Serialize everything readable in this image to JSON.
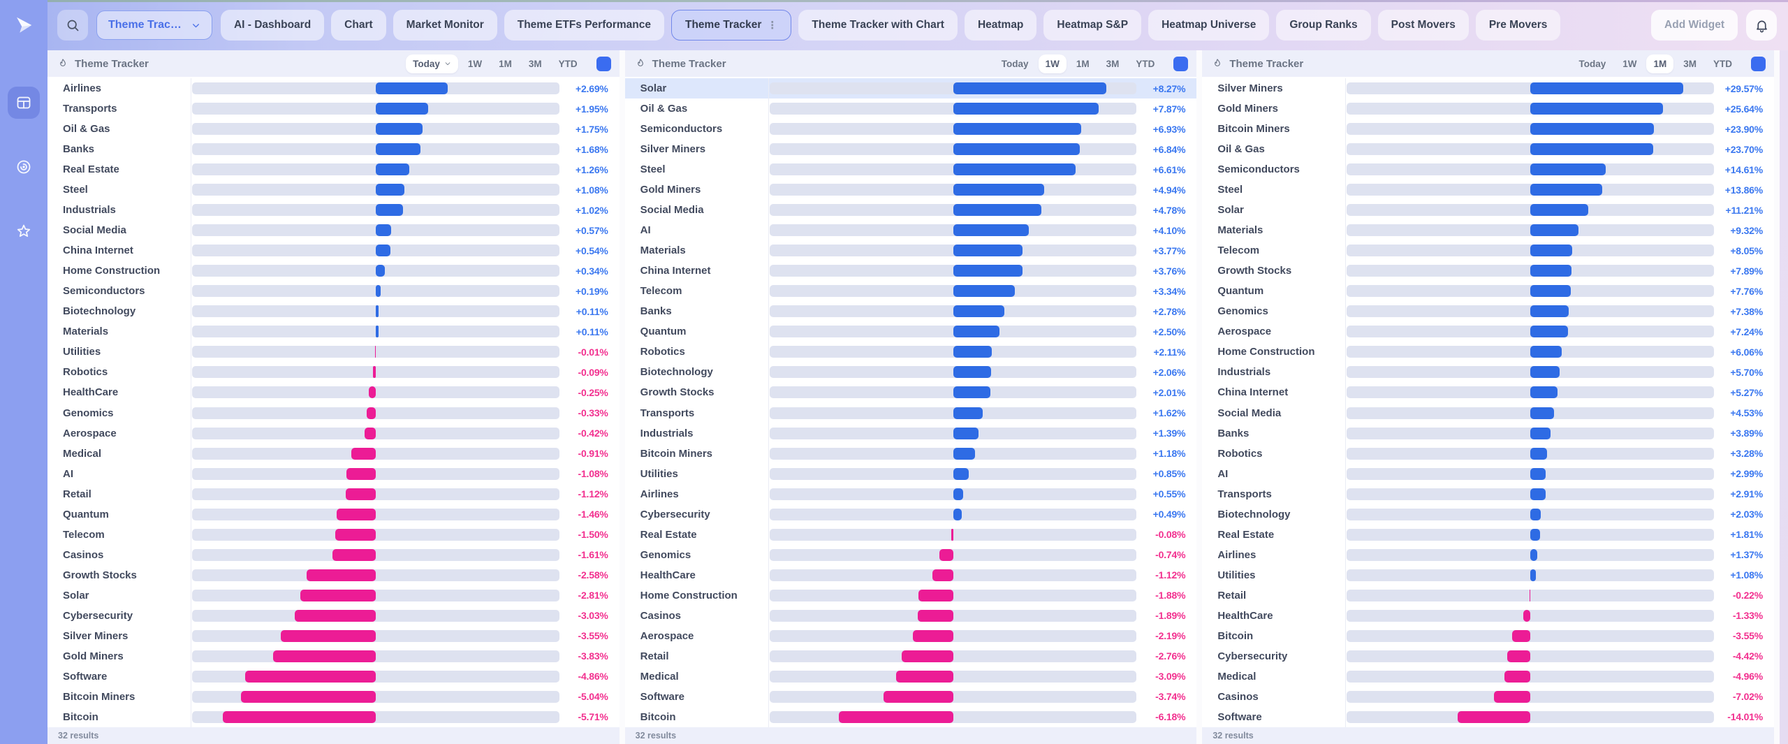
{
  "topbar": {
    "theme_dropdown": {
      "label": "Theme Trac…"
    },
    "tabs": [
      {
        "label": "AI - Dashboard",
        "active": false
      },
      {
        "label": "Chart",
        "active": false
      },
      {
        "label": "Market Monitor",
        "active": false
      },
      {
        "label": "Theme ETFs Performance",
        "active": false
      },
      {
        "label": "Theme Tracker",
        "active": true
      },
      {
        "label": "Theme Tracker with Chart",
        "active": false
      },
      {
        "label": "Heatmap",
        "active": false
      },
      {
        "label": "Heatmap S&P",
        "active": false
      },
      {
        "label": "Heatmap Universe",
        "active": false
      },
      {
        "label": "Group Ranks",
        "active": false
      },
      {
        "label": "Post Movers",
        "active": false
      },
      {
        "label": "Pre Movers",
        "active": false
      }
    ],
    "add_widget_label": "Add Widget"
  },
  "sidebar": {
    "items": [
      {
        "icon": "dashboard-icon",
        "active": true
      },
      {
        "icon": "spiral-icon",
        "active": false
      },
      {
        "icon": "star-icon",
        "active": false
      }
    ]
  },
  "colors": {
    "positive_bar": "#2e6be4",
    "negative_bar": "#ec1c95",
    "positive_text": "#3b78f0",
    "negative_text": "#f2308f",
    "track": "#dee2f0",
    "accent_blue": "#3a6cf0",
    "sidebar": "#8c9ff0"
  },
  "panels": [
    {
      "title": "Theme Tracker",
      "ranges": [
        "Today",
        "1W",
        "1M",
        "3M",
        "YTD"
      ],
      "selected_range": "Today",
      "selected_has_chevron": true,
      "highlighted_theme": null,
      "results_label": "32 results",
      "chart_data": {
        "type": "bar",
        "orientation": "horizontal",
        "baseline": 0,
        "scale_max_factor": 1.2,
        "unit": "%",
        "categories": [
          "Airlines",
          "Transports",
          "Oil & Gas",
          "Banks",
          "Real Estate",
          "Steel",
          "Industrials",
          "Social Media",
          "China Internet",
          "Home Construction",
          "Semiconductors",
          "Biotechnology",
          "Materials",
          "Utilities",
          "Robotics",
          "HealthCare",
          "Genomics",
          "Aerospace",
          "Medical",
          "AI",
          "Retail",
          "Quantum",
          "Telecom",
          "Casinos",
          "Growth Stocks",
          "Solar",
          "Cybersecurity",
          "Silver Miners",
          "Gold Miners",
          "Software",
          "Bitcoin Miners",
          "Bitcoin"
        ],
        "values": [
          2.69,
          1.95,
          1.75,
          1.68,
          1.26,
          1.08,
          1.02,
          0.57,
          0.54,
          0.34,
          0.19,
          0.11,
          0.11,
          -0.01,
          -0.09,
          -0.25,
          -0.33,
          -0.42,
          -0.91,
          -1.08,
          -1.12,
          -1.46,
          -1.5,
          -1.61,
          -2.58,
          -2.81,
          -3.03,
          -3.55,
          -3.83,
          -4.86,
          -5.04,
          -5.71
        ]
      }
    },
    {
      "title": "Theme Tracker",
      "ranges": [
        "Today",
        "1W",
        "1M",
        "3M",
        "YTD"
      ],
      "selected_range": "1W",
      "selected_has_chevron": false,
      "highlighted_theme": "Solar",
      "results_label": "32 results",
      "chart_data": {
        "type": "bar",
        "orientation": "horizontal",
        "baseline": 0,
        "scale_max_factor": 1.2,
        "unit": "%",
        "categories": [
          "Solar",
          "Oil & Gas",
          "Semiconductors",
          "Silver Miners",
          "Steel",
          "Gold Miners",
          "Social Media",
          "AI",
          "Materials",
          "China Internet",
          "Telecom",
          "Banks",
          "Quantum",
          "Robotics",
          "Biotechnology",
          "Growth Stocks",
          "Transports",
          "Industrials",
          "Bitcoin Miners",
          "Utilities",
          "Airlines",
          "Cybersecurity",
          "Real Estate",
          "Genomics",
          "HealthCare",
          "Home Construction",
          "Casinos",
          "Aerospace",
          "Retail",
          "Medical",
          "Software",
          "Bitcoin"
        ],
        "values": [
          8.27,
          7.87,
          6.93,
          6.84,
          6.61,
          4.94,
          4.78,
          4.1,
          3.77,
          3.76,
          3.34,
          2.78,
          2.5,
          2.11,
          2.06,
          2.01,
          1.62,
          1.39,
          1.18,
          0.85,
          0.55,
          0.49,
          -0.08,
          -0.74,
          -1.12,
          -1.88,
          -1.89,
          -2.19,
          -2.76,
          -3.09,
          -3.74,
          -6.18
        ]
      }
    },
    {
      "title": "Theme Tracker",
      "ranges": [
        "Today",
        "1W",
        "1M",
        "3M",
        "YTD"
      ],
      "selected_range": "1M",
      "selected_has_chevron": false,
      "highlighted_theme": null,
      "results_label": "32 results",
      "chart_data": {
        "type": "bar",
        "orientation": "horizontal",
        "baseline": 0,
        "scale_max_factor": 1.2,
        "unit": "%",
        "categories": [
          "Silver Miners",
          "Gold Miners",
          "Bitcoin Miners",
          "Oil & Gas",
          "Semiconductors",
          "Steel",
          "Solar",
          "Materials",
          "Telecom",
          "Growth Stocks",
          "Quantum",
          "Genomics",
          "Aerospace",
          "Home Construction",
          "Industrials",
          "China Internet",
          "Social Media",
          "Banks",
          "Robotics",
          "AI",
          "Transports",
          "Biotechnology",
          "Real Estate",
          "Airlines",
          "Utilities",
          "Retail",
          "HealthCare",
          "Bitcoin",
          "Cybersecurity",
          "Medical",
          "Casinos",
          "Software"
        ],
        "values": [
          29.57,
          25.64,
          23.9,
          23.7,
          14.61,
          13.86,
          11.21,
          9.32,
          8.05,
          7.89,
          7.76,
          7.38,
          7.24,
          6.06,
          5.7,
          5.27,
          4.53,
          3.89,
          3.28,
          2.99,
          2.91,
          2.03,
          1.81,
          1.37,
          1.08,
          -0.22,
          -1.33,
          -3.55,
          -4.42,
          -4.96,
          -7.02,
          -14.01
        ]
      }
    }
  ]
}
